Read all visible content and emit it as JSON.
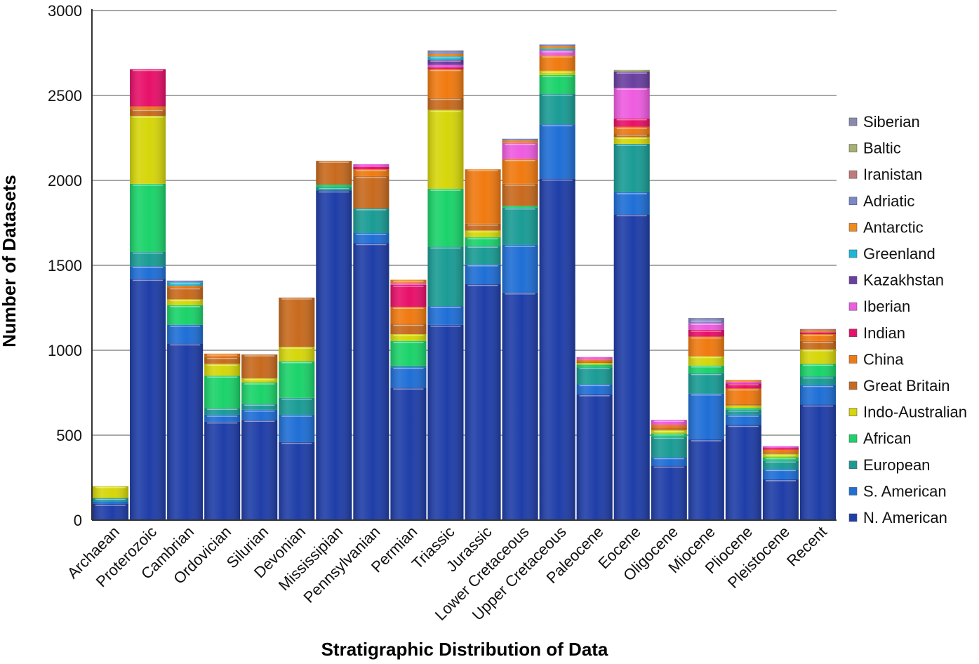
{
  "chart_data": {
    "type": "bar",
    "stacked": true,
    "title": "",
    "xlabel": "Stratigraphic Distribution of Data",
    "ylabel": "Number of Datasets",
    "ylim": [
      0,
      3000
    ],
    "yticks": [
      0,
      500,
      1000,
      1500,
      2000,
      2500,
      3000
    ],
    "grid": true,
    "legend_position": "right",
    "categories": [
      "Archaean",
      "Proterozoic",
      "Cambrian",
      "Ordovician",
      "Silurian",
      "Devonian",
      "Mississipian",
      "Pennsylvanian",
      "Permian",
      "Triassic",
      "Jurassic",
      "Lower Cretaceous",
      "Upper Cretaceous",
      "Paleocene",
      "Eocene",
      "Oligocene",
      "Miocene",
      "Pliocene",
      "Pleistocene",
      "Recent"
    ],
    "series": [
      {
        "name": "N. American",
        "color": "#1f3ea8",
        "values": [
          95,
          1420,
          1040,
          580,
          590,
          460,
          1940,
          1630,
          780,
          1150,
          1390,
          1340,
          2010,
          740,
          1800,
          320,
          475,
          560,
          240,
          680
        ]
      },
      {
        "name": "S. American",
        "color": "#1f6fd6",
        "values": [
          15,
          75,
          110,
          40,
          60,
          160,
          0,
          60,
          120,
          110,
          115,
          280,
          320,
          60,
          130,
          50,
          270,
          60,
          60,
          115
        ]
      },
      {
        "name": "European",
        "color": "#1a9c95",
        "values": [
          20,
          85,
          0,
          40,
          35,
          100,
          20,
          145,
          10,
          350,
          110,
          220,
          180,
          100,
          285,
          120,
          120,
          30,
          50,
          50
        ]
      },
      {
        "name": "African",
        "color": "#1bd36a",
        "values": [
          0,
          400,
          115,
          190,
          125,
          215,
          15,
          0,
          145,
          340,
          50,
          10,
          110,
          15,
          0,
          20,
          45,
          10,
          20,
          75
        ]
      },
      {
        "name": "Indo-Australian",
        "color": "#d6d60a",
        "values": [
          70,
          400,
          35,
          70,
          25,
          85,
          0,
          0,
          40,
          465,
          40,
          0,
          25,
          10,
          40,
          20,
          55,
          15,
          20,
          85
        ]
      },
      {
        "name": "Great Britain",
        "color": "#c86a1e",
        "values": [
          0,
          40,
          70,
          40,
          140,
          290,
          140,
          190,
          60,
          70,
          40,
          130,
          0,
          10,
          20,
          15,
          0,
          10,
          10,
          50
        ]
      },
      {
        "name": "China",
        "color": "#f07a10",
        "values": [
          0,
          15,
          10,
          20,
          0,
          0,
          0,
          40,
          100,
          170,
          320,
          145,
          90,
          10,
          40,
          15,
          115,
          90,
          15,
          40
        ]
      },
      {
        "name": "Indian",
        "color": "#e8106a",
        "values": [
          0,
          220,
          0,
          0,
          0,
          0,
          0,
          15,
          130,
          10,
          0,
          0,
          0,
          0,
          50,
          0,
          40,
          30,
          10,
          10
        ]
      },
      {
        "name": "Iberian",
        "color": "#ee5ce0",
        "values": [
          0,
          0,
          0,
          0,
          0,
          0,
          0,
          15,
          10,
          15,
          0,
          95,
          30,
          15,
          180,
          30,
          40,
          10,
          10,
          0
        ]
      },
      {
        "name": "Kazakhstan",
        "color": "#6a3fa0",
        "values": [
          0,
          0,
          0,
          0,
          0,
          0,
          0,
          0,
          0,
          30,
          0,
          0,
          0,
          0,
          95,
          0,
          0,
          0,
          0,
          0
        ]
      },
      {
        "name": "Greenland",
        "color": "#1ab8d8",
        "values": [
          0,
          0,
          20,
          0,
          0,
          0,
          0,
          0,
          0,
          20,
          0,
          0,
          10,
          0,
          0,
          0,
          0,
          0,
          0,
          0
        ]
      },
      {
        "name": "Antarctic",
        "color": "#f08a18",
        "values": [
          0,
          0,
          0,
          0,
          0,
          0,
          0,
          0,
          20,
          15,
          0,
          15,
          15,
          0,
          0,
          0,
          0,
          10,
          0,
          10
        ]
      },
      {
        "name": "Adriatic",
        "color": "#7a88c8",
        "values": [
          0,
          0,
          10,
          0,
          0,
          0,
          0,
          0,
          0,
          10,
          0,
          10,
          10,
          0,
          0,
          0,
          20,
          0,
          0,
          0
        ]
      },
      {
        "name": "Iranistan",
        "color": "#c07a7a",
        "values": [
          0,
          0,
          0,
          0,
          0,
          0,
          0,
          0,
          0,
          0,
          0,
          0,
          0,
          0,
          0,
          0,
          0,
          0,
          0,
          10
        ]
      },
      {
        "name": "Baltic",
        "color": "#a8b070",
        "values": [
          0,
          0,
          0,
          0,
          0,
          0,
          0,
          0,
          0,
          0,
          0,
          0,
          0,
          0,
          10,
          0,
          0,
          0,
          0,
          0
        ]
      },
      {
        "name": "Siberian",
        "color": "#8a8ab0",
        "values": [
          0,
          0,
          0,
          0,
          0,
          0,
          0,
          0,
          0,
          10,
          0,
          0,
          0,
          0,
          0,
          0,
          10,
          0,
          0,
          0
        ]
      }
    ]
  }
}
